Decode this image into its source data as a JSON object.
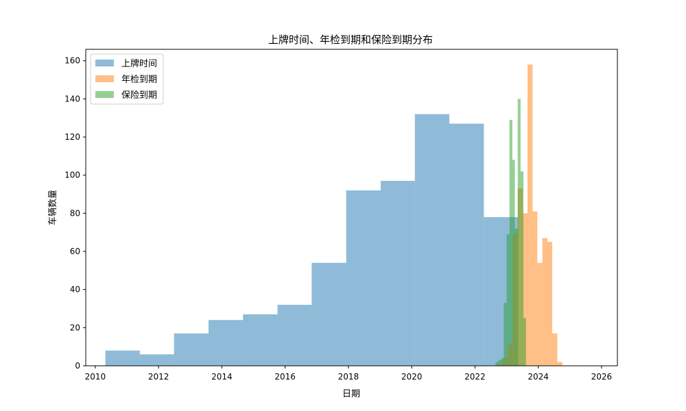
{
  "chart_data": {
    "type": "histogram",
    "title": "上牌时间、年检到期和保险到期分布",
    "xlabel": "日期",
    "ylabel": "车辆数量",
    "xlim": [
      2009.7,
      2026.5
    ],
    "ylim": [
      0,
      166
    ],
    "x_ticks": [
      2010,
      2012,
      2014,
      2016,
      2018,
      2020,
      2022,
      2024,
      2026
    ],
    "y_ticks": [
      0,
      20,
      40,
      60,
      80,
      100,
      120,
      140,
      160
    ],
    "legend_position": "top-left",
    "grid": false,
    "series": [
      {
        "name": "上牌时间",
        "color": "#1f77b4",
        "opacity": 0.5,
        "bin_edges": [
          2010.32,
          2011.41,
          2012.49,
          2013.58,
          2014.67,
          2015.76,
          2016.84,
          2017.93,
          2019.02,
          2020.1,
          2021.19,
          2022.28,
          2022.87,
          2023.37
        ],
        "counts": [
          8,
          6,
          17,
          24,
          27,
          32,
          54,
          92,
          97,
          132,
          127,
          78,
          78
        ]
      },
      {
        "name": "年检到期",
        "color": "#ff7f0e",
        "opacity": 0.5,
        "bin_edges": [
          2022.73,
          2022.88,
          2023.04,
          2023.19,
          2023.35,
          2023.51,
          2023.66,
          2023.82,
          2023.97,
          2024.13,
          2024.29,
          2024.44,
          2024.6,
          2024.76,
          2024.91,
          2025.07,
          2025.22,
          2025.38,
          2025.54,
          2025.69,
          2025.85
        ],
        "counts": [
          1,
          4,
          11,
          69,
          93,
          80,
          158,
          81,
          54,
          67,
          65,
          17,
          2,
          0,
          0,
          0,
          0,
          0,
          0,
          0
        ]
      },
      {
        "name": "保险到期",
        "color": "#2ca02c",
        "opacity": 0.5,
        "bin_edges": [
          2022.65,
          2022.74,
          2022.83,
          2022.91,
          2023.0,
          2023.09,
          2023.18,
          2023.26,
          2023.35,
          2023.44,
          2023.53,
          2023.61,
          2023.7,
          2023.79,
          2023.87,
          2023.96,
          2024.05,
          2024.14,
          2024.22,
          2024.31,
          2024.4
        ],
        "counts": [
          2,
          3,
          4,
          33,
          69,
          129,
          108,
          72,
          140,
          102,
          25,
          0,
          0,
          0,
          0,
          0,
          0,
          0,
          0,
          0
        ]
      }
    ]
  }
}
